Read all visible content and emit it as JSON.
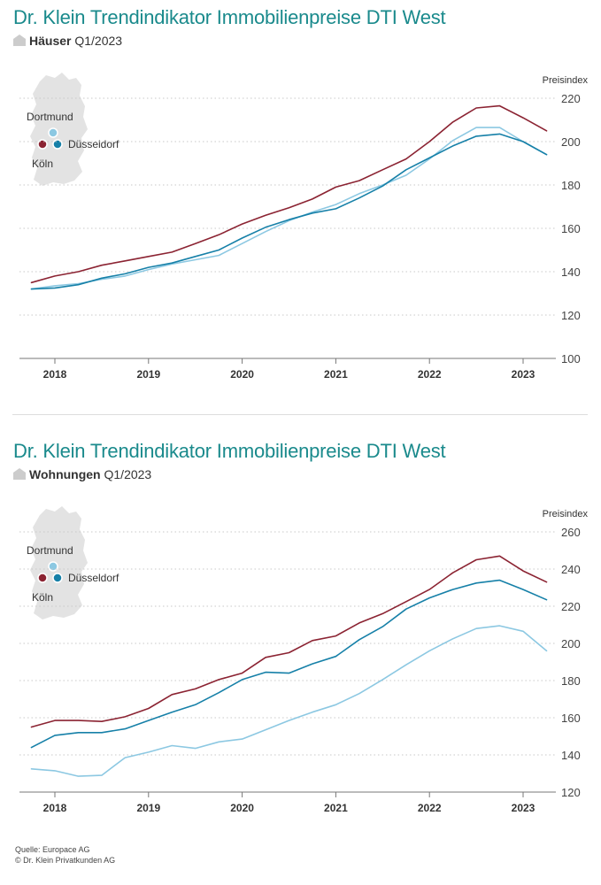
{
  "colors": {
    "title": "#1a8a8c",
    "koeln": "#8b2332",
    "duesseldorf": "#1680a8",
    "dortmund": "#8cc8e2",
    "map": "#e3e3e3",
    "grid": "#c8c8c8",
    "axis": "#777777"
  },
  "icons": {
    "subtitle_icon": "house-icon"
  },
  "legend": {
    "dortmund": "Dortmund",
    "duesseldorf": "Düsseldorf",
    "koeln": "Köln"
  },
  "charts": [
    {
      "title": "Dr. Klein Trendindikator Immobilienpreise DTI West",
      "subtitle_bold": "Häuser",
      "subtitle_rest": " Q1/2023",
      "ylabel": "Preisindex"
    },
    {
      "title": "Dr. Klein Trendindikator Immobilienpreise DTI West",
      "subtitle_bold": "Wohnungen",
      "subtitle_rest": " Q1/2023",
      "ylabel": "Preisindex"
    }
  ],
  "footer": {
    "source": "Quelle: Europace AG",
    "copyright": "© Dr. Klein Privatkunden AG"
  },
  "chart_data": [
    {
      "type": "line",
      "title": "Dr. Klein Trendindikator Immobilienpreise DTI West",
      "ylabel": "Preisindex",
      "x": [
        2017.75,
        2018,
        2018.25,
        2018.5,
        2018.75,
        2019,
        2019.25,
        2019.5,
        2019.75,
        2020,
        2020.25,
        2020.5,
        2020.75,
        2021,
        2021.25,
        2021.5,
        2021.75,
        2022,
        2022.25,
        2022.5,
        2022.75,
        2023,
        2023.25
      ],
      "x_ticks": [
        "2018",
        "2019",
        "2020",
        "2021",
        "2022",
        "2023"
      ],
      "x_tick_values": [
        2018,
        2019,
        2020,
        2021,
        2022,
        2023
      ],
      "ylim": [
        100,
        220
      ],
      "y_ticks": [
        100,
        120,
        140,
        160,
        180,
        200,
        220
      ],
      "y_axis_position": "right",
      "grid": true,
      "legend_position": "top-left map",
      "series": [
        {
          "name": "Köln",
          "color": "#8b2332",
          "values": [
            135,
            138,
            140,
            143,
            145,
            147,
            149,
            153,
            157,
            162,
            166,
            169.5,
            173.5,
            179,
            182,
            187,
            192,
            200,
            209,
            215.5,
            216.5,
            211,
            205
          ]
        },
        {
          "name": "Düsseldorf",
          "color": "#1680a8",
          "values": [
            132,
            132.5,
            134,
            137,
            139,
            142,
            144,
            147,
            150,
            155.5,
            160.5,
            164,
            167,
            169,
            174,
            179.5,
            187,
            192.5,
            198,
            202.5,
            203.5,
            200,
            194
          ]
        },
        {
          "name": "Dortmund",
          "color": "#8cc8e2",
          "values": [
            132,
            133.5,
            134.5,
            136.5,
            138,
            141,
            143.5,
            145.5,
            147.5,
            153,
            158.5,
            163.5,
            167.5,
            171,
            176,
            180,
            184.5,
            192,
            200.5,
            206.5,
            206.5,
            200,
            194
          ]
        }
      ]
    },
    {
      "type": "line",
      "title": "Dr. Klein Trendindikator Immobilienpreise DTI West",
      "ylabel": "Preisindex",
      "x": [
        2017.75,
        2018,
        2018.25,
        2018.5,
        2018.75,
        2019,
        2019.25,
        2019.5,
        2019.75,
        2020,
        2020.25,
        2020.5,
        2020.75,
        2021,
        2021.25,
        2021.5,
        2021.75,
        2022,
        2022.25,
        2022.5,
        2022.75,
        2023,
        2023.25
      ],
      "x_ticks": [
        "2018",
        "2019",
        "2020",
        "2021",
        "2022",
        "2023"
      ],
      "x_tick_values": [
        2018,
        2019,
        2020,
        2021,
        2022,
        2023
      ],
      "ylim": [
        120,
        260
      ],
      "y_ticks": [
        120,
        140,
        160,
        180,
        200,
        220,
        240,
        260
      ],
      "y_axis_position": "right",
      "grid": true,
      "legend_position": "top-left map",
      "series": [
        {
          "name": "Köln",
          "color": "#8b2332",
          "values": [
            155,
            158.5,
            158.5,
            158,
            160.5,
            165,
            172.5,
            175.5,
            180.5,
            184,
            192.5,
            195,
            201.5,
            204,
            211,
            216,
            222.5,
            229,
            238,
            245,
            247,
            239,
            233
          ]
        },
        {
          "name": "Düsseldorf",
          "color": "#1680a8",
          "values": [
            144,
            150.5,
            152,
            152,
            154,
            158.5,
            163,
            167,
            173.5,
            180.5,
            184.5,
            184,
            189,
            193,
            202,
            209,
            218.5,
            224.5,
            229,
            232.5,
            234,
            229,
            223.5
          ]
        },
        {
          "name": "Dortmund",
          "color": "#8cc8e2",
          "values": [
            132.5,
            131.5,
            128.5,
            129,
            138.5,
            141.5,
            145,
            143.5,
            147,
            148.5,
            153.5,
            158.5,
            163,
            167,
            173,
            180.5,
            188.5,
            196,
            202.5,
            208,
            209.5,
            206.5,
            196
          ]
        }
      ]
    }
  ]
}
